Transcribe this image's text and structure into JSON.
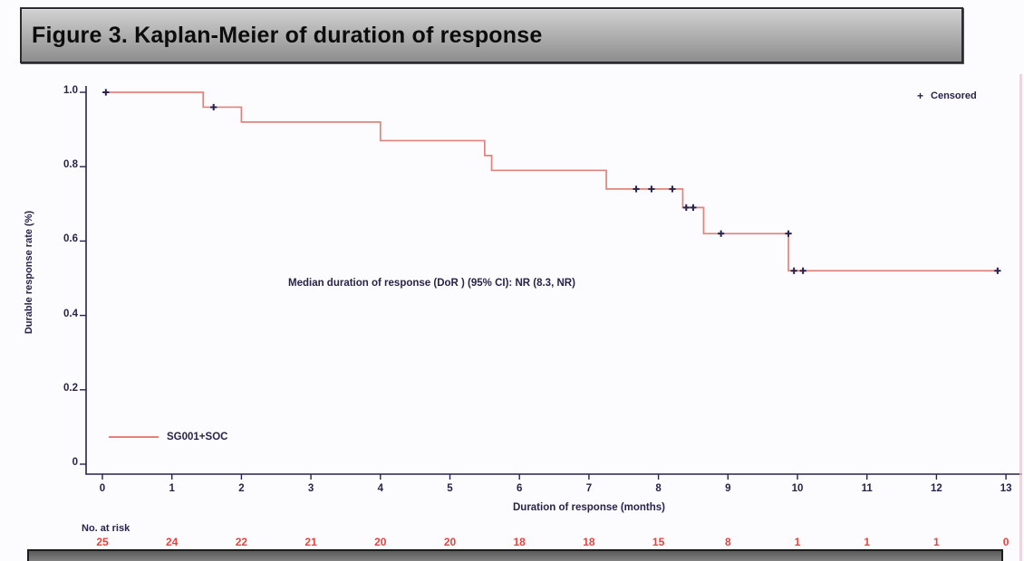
{
  "title_bar": {
    "label": "Figure 3. Kaplan-Meier of duration of response"
  },
  "colors": {
    "curve": "#e2827d",
    "censor": "#29224a",
    "axis": "#29224a",
    "text": "#29224a",
    "risk": "#e5423d",
    "titletext": "#0c0c0c"
  },
  "chart_data": {
    "type": "line",
    "subtype": "kaplan-meier-step",
    "title": "Figure 3. Kaplan-Meier of duration of response",
    "xlabel": "Duration of response (months)",
    "ylabel": "Durable response rate (%)",
    "xlim": [
      0,
      13
    ],
    "ylim": [
      0,
      1.0
    ],
    "xticks": [
      0,
      1,
      2,
      3,
      4,
      5,
      6,
      7,
      8,
      9,
      10,
      11,
      12,
      13
    ],
    "yticks": [
      0,
      0.2,
      0.4,
      0.6,
      0.8,
      1.0
    ],
    "ytick_labels": [
      "0",
      "0.2",
      "0.4",
      "0.6",
      "0.8",
      "1.0"
    ],
    "grid": false,
    "annotation": "Median duration of response (DoR ) (95% CI): NR (8.3, NR)",
    "legend": {
      "censored_marker": "+",
      "censored_label": "Censored",
      "series_label": "SG001+SOC",
      "censored_position": "top-right",
      "series_position": "bottom-left"
    },
    "series": [
      {
        "name": "SG001+SOC",
        "steps": [
          [
            0,
            1.0
          ],
          [
            1.45,
            0.96
          ],
          [
            2.0,
            0.92
          ],
          [
            4.0,
            0.87
          ],
          [
            5.5,
            0.83
          ],
          [
            5.6,
            0.79
          ],
          [
            7.25,
            0.74
          ],
          [
            8.35,
            0.69
          ],
          [
            8.65,
            0.62
          ],
          [
            9.87,
            0.52
          ],
          [
            12.9,
            0.52
          ]
        ],
        "censored": [
          [
            0.05,
            1.0
          ],
          [
            1.6,
            0.96
          ],
          [
            7.68,
            0.74
          ],
          [
            7.9,
            0.74
          ],
          [
            8.2,
            0.74
          ],
          [
            8.4,
            0.69
          ],
          [
            8.5,
            0.69
          ],
          [
            8.9,
            0.62
          ],
          [
            9.87,
            0.62
          ],
          [
            9.95,
            0.52
          ],
          [
            10.08,
            0.52
          ],
          [
            12.88,
            0.52
          ]
        ]
      }
    ],
    "at_risk": {
      "label": "No. at risk",
      "values": [
        25,
        24,
        22,
        21,
        20,
        20,
        18,
        18,
        15,
        8,
        1,
        1,
        1,
        0
      ]
    }
  }
}
